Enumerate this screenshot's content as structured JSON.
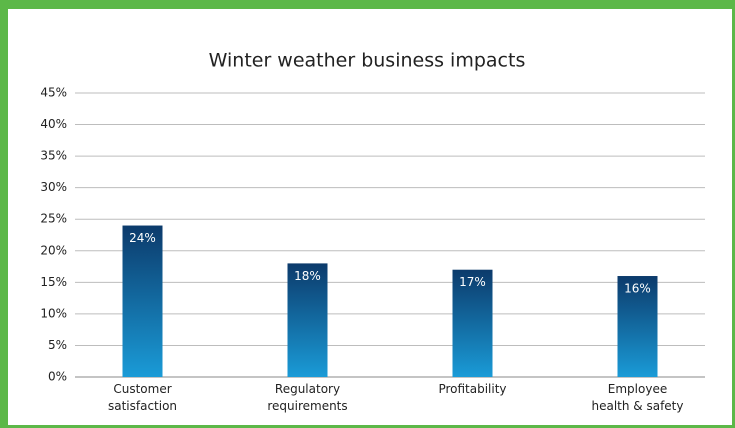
{
  "chart_data": {
    "type": "bar",
    "title": "Winter weather business impacts",
    "categories": [
      "Customer satisfaction",
      "Regulatory requirements",
      "Profitability",
      "Employee health & safety"
    ],
    "values": [
      24,
      18,
      17,
      16
    ],
    "value_labels": [
      "24%",
      "18%",
      "17%",
      "16%"
    ],
    "color": [
      "#0c3a6b",
      "#1a9bd7"
    ],
    "ylim": [
      0,
      45
    ],
    "yticks": [
      {
        "value": 0,
        "label": "0%"
      },
      {
        "value": 5,
        "label": "5%"
      },
      {
        "value": 10,
        "label": "10%"
      },
      {
        "value": 15,
        "label": "15%"
      },
      {
        "value": 20,
        "label": "20%"
      },
      {
        "value": 25,
        "label": "25%"
      },
      {
        "value": 30,
        "label": "30%"
      },
      {
        "value": 35,
        "label": "35%"
      },
      {
        "value": 40,
        "label": "40%"
      },
      {
        "value": 45,
        "label": "45%"
      }
    ],
    "grid": true
  }
}
